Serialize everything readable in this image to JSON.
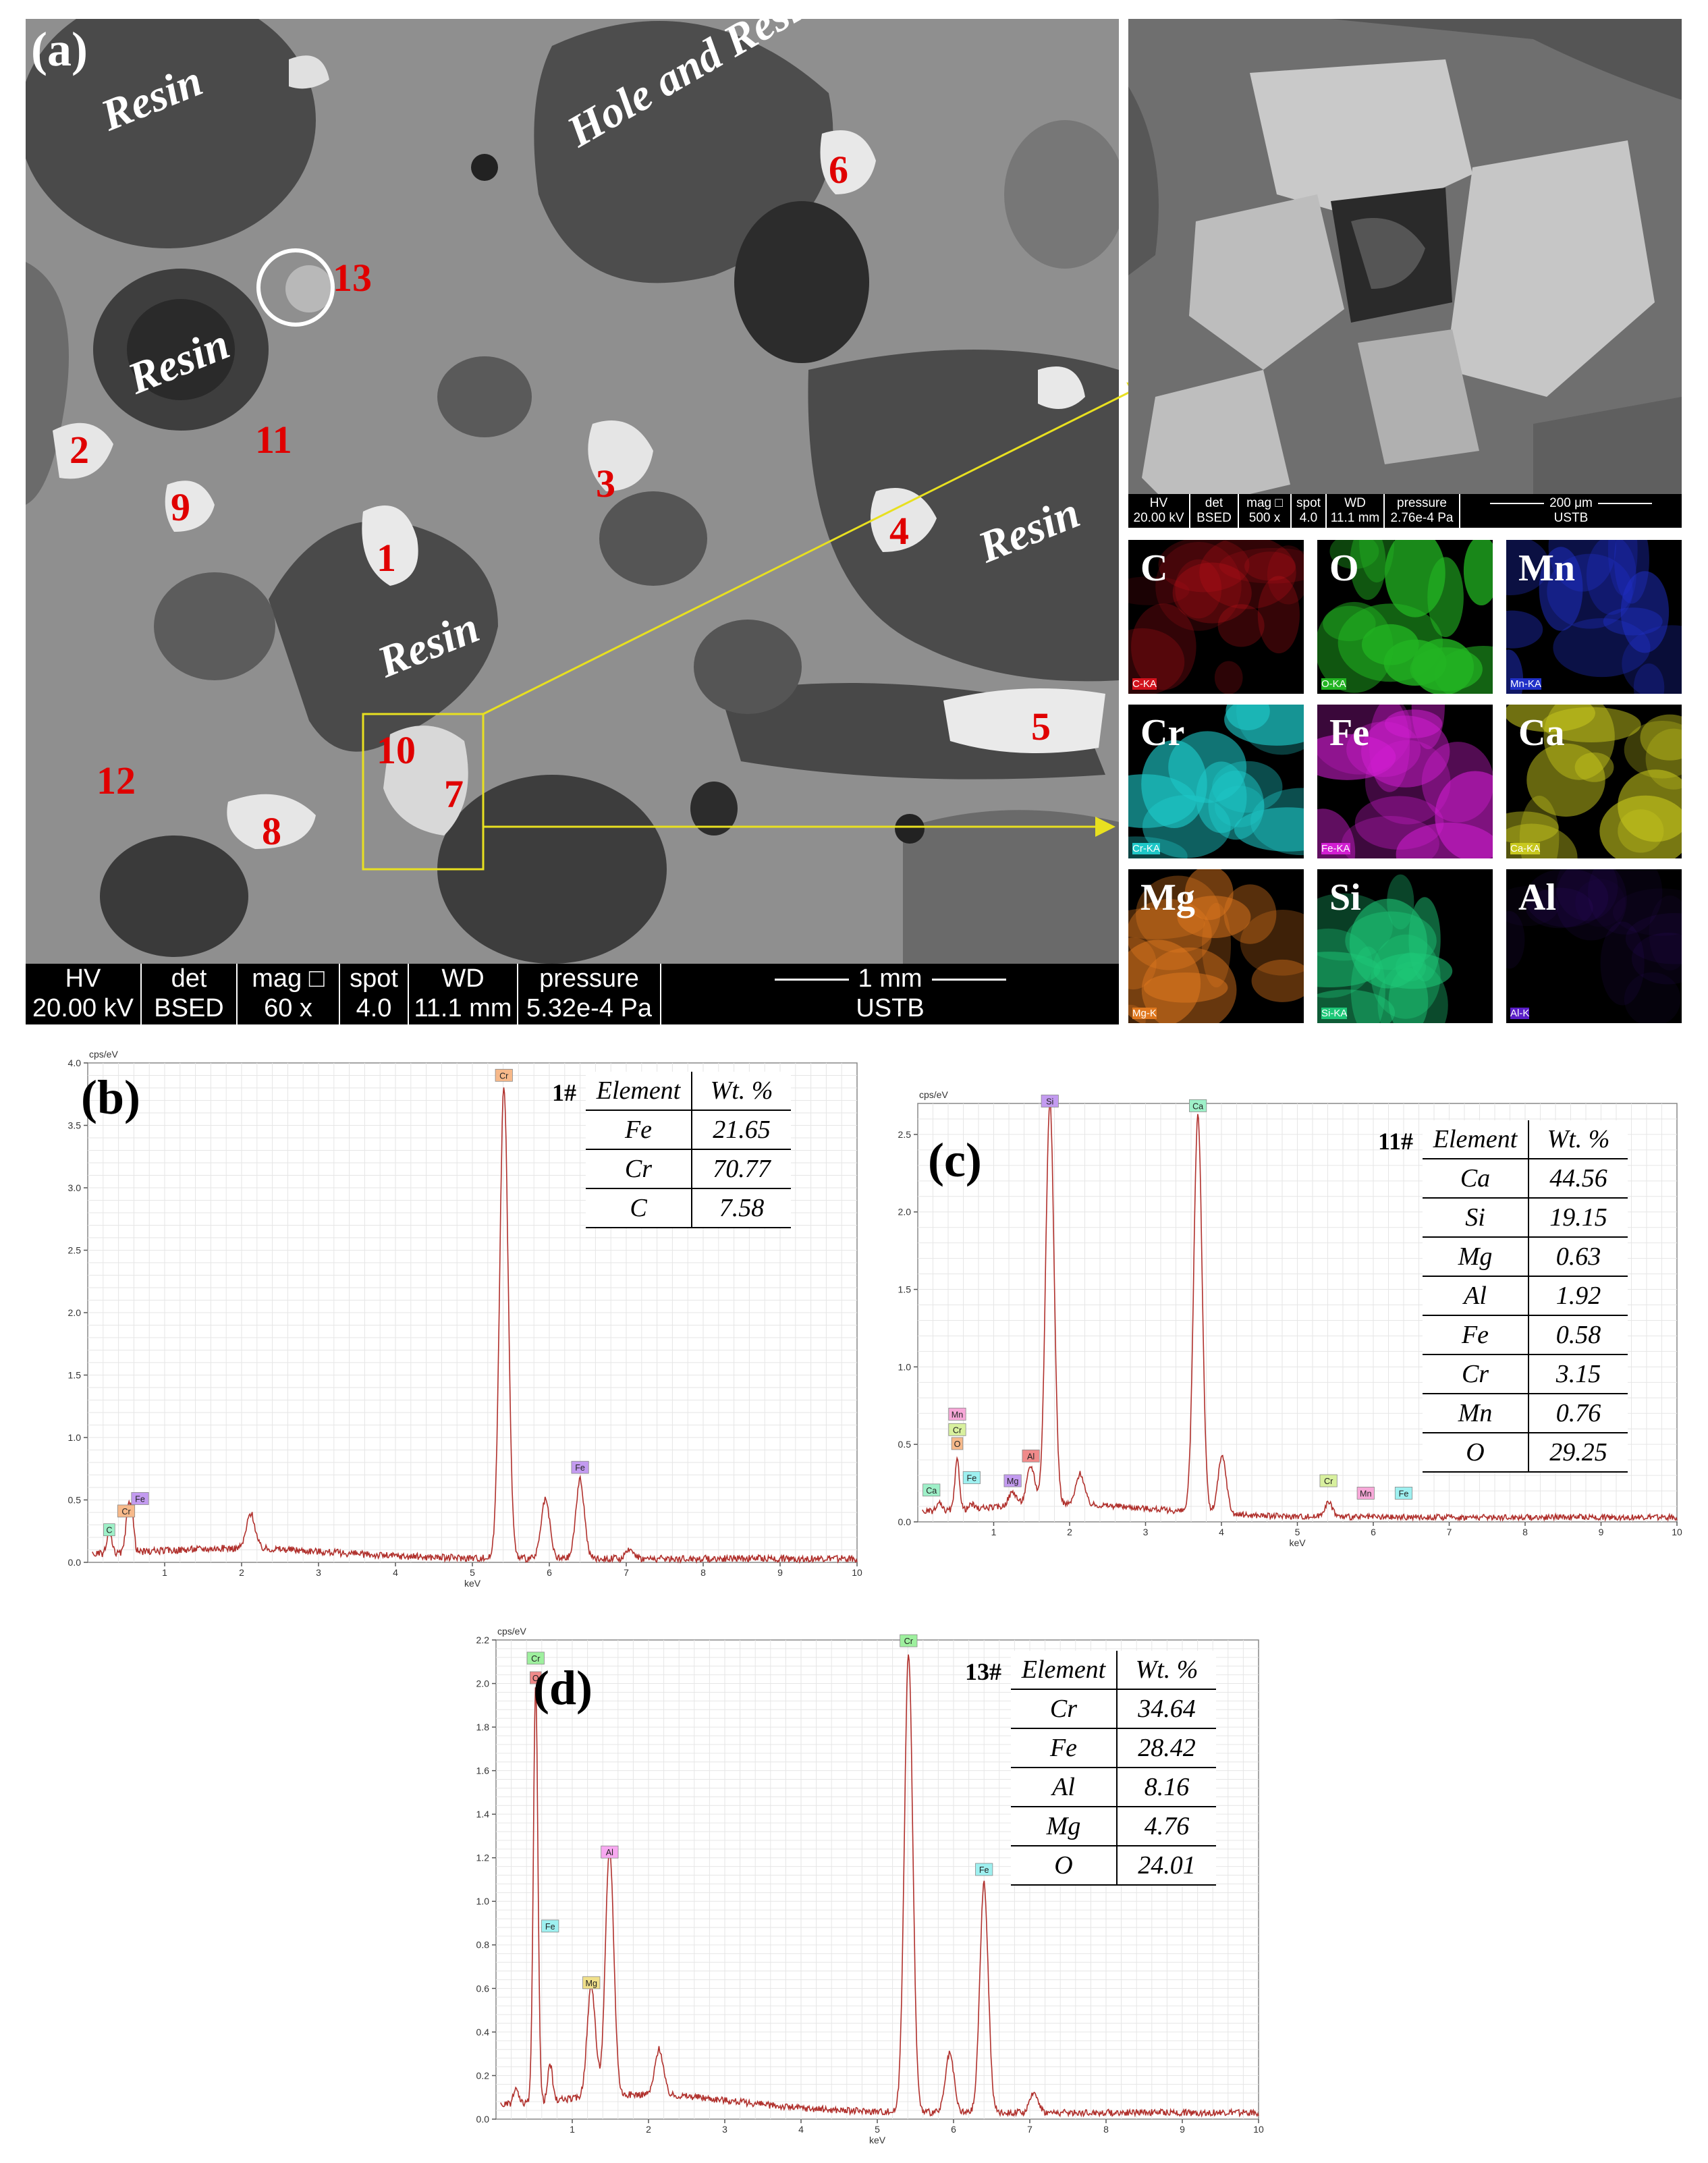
{
  "panel_a": {
    "letter": "(a)",
    "regions": [
      {
        "text": "Resin",
        "rotate": -22
      },
      {
        "text": "Hole and Resin",
        "rotate": -30
      },
      {
        "text": "Resin",
        "rotate": -22
      },
      {
        "text": "Resin",
        "rotate": -22
      },
      {
        "text": "Resin",
        "rotate": -22
      }
    ],
    "numbers": [
      "1",
      "2",
      "3",
      "4",
      "5",
      "6",
      "7",
      "8",
      "9",
      "10",
      "11",
      "12",
      "13"
    ],
    "infobar": {
      "headers": [
        "HV",
        "det",
        "mag □",
        "spot",
        "WD",
        "pressure"
      ],
      "values": [
        "20.00 kV",
        "BSED",
        "60 x",
        "4.0",
        "11.1 mm",
        "5.32e-4 Pa"
      ],
      "scale": "1 mm",
      "lab": "USTB"
    },
    "inset_infobar": {
      "headers": [
        "HV",
        "det",
        "mag □",
        "spot",
        "WD",
        "pressure"
      ],
      "values": [
        "20.00 kV",
        "BSED",
        "500 x",
        "4.0",
        "11.1 mm",
        "2.76e-4 Pa"
      ],
      "scale": "200 μm",
      "lab": "USTB"
    },
    "maps": [
      {
        "element": "C",
        "tag": "C-KA",
        "color": "#d2121c"
      },
      {
        "element": "O",
        "tag": "O-KA",
        "color": "#22b422"
      },
      {
        "element": "Mn",
        "tag": "Mn-KA",
        "color": "#2030c8"
      },
      {
        "element": "Cr",
        "tag": "Cr-KA",
        "color": "#1ec8c8"
      },
      {
        "element": "Fe",
        "tag": "Fe-KA",
        "color": "#d21ed2"
      },
      {
        "element": "Ca",
        "tag": "Ca-KA",
        "color": "#c8c81e"
      },
      {
        "element": "Mg",
        "tag": "Mg-K",
        "color": "#e0781e"
      },
      {
        "element": "Si",
        "tag": "Si-KA",
        "color": "#1ec878"
      },
      {
        "element": "Al",
        "tag": "Al-K",
        "color": "#5a1ec8"
      }
    ]
  },
  "chart_data": [
    {
      "type": "line",
      "panel": "(b)",
      "ylabel": "cps/eV",
      "xlabel": "keV",
      "xlim": [
        0,
        10
      ],
      "ylim": [
        0,
        4.0
      ],
      "yticks": [
        "0.0",
        "0.5",
        "1.0",
        "1.5",
        "2.0",
        "2.5",
        "3.0",
        "3.5",
        "4.0"
      ],
      "xticks": [
        "1",
        "2",
        "3",
        "4",
        "5",
        "6",
        "7",
        "8",
        "9",
        "10"
      ],
      "peaks": [
        {
          "x": 0.28,
          "y": 0.22
        },
        {
          "x": 0.52,
          "y": 0.32
        },
        {
          "x": 0.57,
          "y": 0.36
        },
        {
          "x": 2.12,
          "y": 0.33
        },
        {
          "x": 5.41,
          "y": 3.82
        },
        {
          "x": 5.95,
          "y": 0.52
        },
        {
          "x": 6.4,
          "y": 0.68
        },
        {
          "x": 7.06,
          "y": 0.12
        }
      ],
      "peak_labels": [
        {
          "text": "Cr",
          "x": 5.41,
          "y": 3.82,
          "color": "#f7b98a"
        },
        {
          "text": "Fe",
          "x": 6.4,
          "y": 0.68,
          "color": "#c39bf0"
        },
        {
          "text": "Fe",
          "x": 0.68,
          "y": 0.43,
          "color": "#c39bf0"
        },
        {
          "text": "Cr",
          "x": 0.5,
          "y": 0.33,
          "color": "#f7b98a"
        },
        {
          "text": "C",
          "x": 0.28,
          "y": 0.18,
          "color": "#9ef0c8"
        }
      ],
      "table": {
        "label": "1#",
        "headers": [
          "Element",
          "Wt. %"
        ],
        "rows": [
          [
            "Fe",
            "21.65"
          ],
          [
            "Cr",
            "70.77"
          ],
          [
            "C",
            "7.58"
          ]
        ]
      }
    },
    {
      "type": "line",
      "panel": "(c)",
      "ylabel": "cps/eV",
      "xlabel": "keV",
      "xlim": [
        0,
        10
      ],
      "ylim": [
        0,
        2.7
      ],
      "yticks": [
        "0.0",
        "0.5",
        "1.0",
        "1.5",
        "2.0",
        "2.5"
      ],
      "xticks": [
        "1",
        "2",
        "3",
        "4",
        "5",
        "6",
        "7",
        "8",
        "9",
        "10"
      ],
      "peaks": [
        {
          "x": 0.28,
          "y": 0.1
        },
        {
          "x": 0.52,
          "y": 0.37
        },
        {
          "x": 0.71,
          "y": 0.08
        },
        {
          "x": 1.25,
          "y": 0.14
        },
        {
          "x": 1.49,
          "y": 0.3
        },
        {
          "x": 1.74,
          "y": 2.65
        },
        {
          "x": 2.14,
          "y": 0.25
        },
        {
          "x": 3.69,
          "y": 2.62
        },
        {
          "x": 4.01,
          "y": 0.42
        },
        {
          "x": 5.41,
          "y": 0.14
        },
        {
          "x": 5.9,
          "y": 0.05
        },
        {
          "x": 6.4,
          "y": 0.05
        }
      ],
      "peak_labels": [
        {
          "text": "Si",
          "x": 1.74,
          "y": 2.65,
          "color": "#c39bf0"
        },
        {
          "text": "Ca",
          "x": 3.69,
          "y": 2.62,
          "color": "#9ef0c8"
        },
        {
          "text": "Mn",
          "x": 0.52,
          "y": 0.63,
          "color": "#f7a8d8"
        },
        {
          "text": "Cr",
          "x": 0.52,
          "y": 0.53,
          "color": "#d8f09e"
        },
        {
          "text": "O",
          "x": 0.52,
          "y": 0.44,
          "color": "#f7b98a"
        },
        {
          "text": "Al",
          "x": 1.49,
          "y": 0.36,
          "color": "#f08a8a"
        },
        {
          "text": "Fe",
          "x": 0.71,
          "y": 0.22,
          "color": "#9ef0f0"
        },
        {
          "text": "Mg",
          "x": 1.25,
          "y": 0.2,
          "color": "#c39bf0"
        },
        {
          "text": "Ca",
          "x": 0.18,
          "y": 0.14,
          "color": "#9ef0c8"
        },
        {
          "text": "Cr",
          "x": 5.41,
          "y": 0.2,
          "color": "#d8f09e"
        },
        {
          "text": "Mn",
          "x": 5.9,
          "y": 0.12,
          "color": "#f7a8d8"
        },
        {
          "text": "Fe",
          "x": 6.4,
          "y": 0.12,
          "color": "#9ef0f0"
        }
      ],
      "table": {
        "label": "11#",
        "headers": [
          "Element",
          "Wt. %"
        ],
        "rows": [
          [
            "Ca",
            "44.56"
          ],
          [
            "Si",
            "19.15"
          ],
          [
            "Mg",
            "0.63"
          ],
          [
            "Al",
            "1.92"
          ],
          [
            "Fe",
            "0.58"
          ],
          [
            "Cr",
            "3.15"
          ],
          [
            "Mn",
            "0.76"
          ],
          [
            "O",
            "29.25"
          ]
        ]
      }
    },
    {
      "type": "line",
      "panel": "(d)",
      "ylabel": "cps/eV",
      "xlabel": "keV",
      "xlim": [
        0,
        10
      ],
      "ylim": [
        0,
        2.2
      ],
      "yticks": [
        "0.0",
        "0.2",
        "0.4",
        "0.6",
        "0.8",
        "1.0",
        "1.2",
        "1.4",
        "1.6",
        "1.8",
        "2.0",
        "2.2"
      ],
      "xticks": [
        "1",
        "2",
        "3",
        "4",
        "5",
        "6",
        "7",
        "8",
        "9",
        "10"
      ],
      "peaks": [
        {
          "x": 0.26,
          "y": 0.12
        },
        {
          "x": 0.52,
          "y": 1.95
        },
        {
          "x": 0.71,
          "y": 0.22
        },
        {
          "x": 1.25,
          "y": 0.56
        },
        {
          "x": 1.49,
          "y": 1.18
        },
        {
          "x": 2.14,
          "y": 0.26
        },
        {
          "x": 5.41,
          "y": 2.15
        },
        {
          "x": 5.95,
          "y": 0.32
        },
        {
          "x": 6.4,
          "y": 1.1
        },
        {
          "x": 7.06,
          "y": 0.14
        }
      ],
      "peak_labels": [
        {
          "text": "Cr",
          "x": 0.52,
          "y": 2.07,
          "color": "#9ef09e"
        },
        {
          "text": "O",
          "x": 0.52,
          "y": 1.98,
          "color": "#f08a8a"
        },
        {
          "text": "Cr",
          "x": 5.41,
          "y": 2.15,
          "color": "#9ef09e"
        },
        {
          "text": "Al",
          "x": 1.49,
          "y": 1.18,
          "color": "#f7a8f0"
        },
        {
          "text": "Fe",
          "x": 6.4,
          "y": 1.1,
          "color": "#9ef0f0"
        },
        {
          "text": "Fe",
          "x": 0.71,
          "y": 0.84,
          "color": "#9ef0f0"
        },
        {
          "text": "Mg",
          "x": 1.25,
          "y": 0.58,
          "color": "#f0e08a"
        }
      ],
      "table": {
        "label": "13#",
        "headers": [
          "Element",
          "Wt. %"
        ],
        "rows": [
          [
            "Cr",
            "34.64"
          ],
          [
            "Fe",
            "28.42"
          ],
          [
            "Al",
            "8.16"
          ],
          [
            "Mg",
            "4.76"
          ],
          [
            "O",
            "24.01"
          ]
        ]
      }
    }
  ]
}
